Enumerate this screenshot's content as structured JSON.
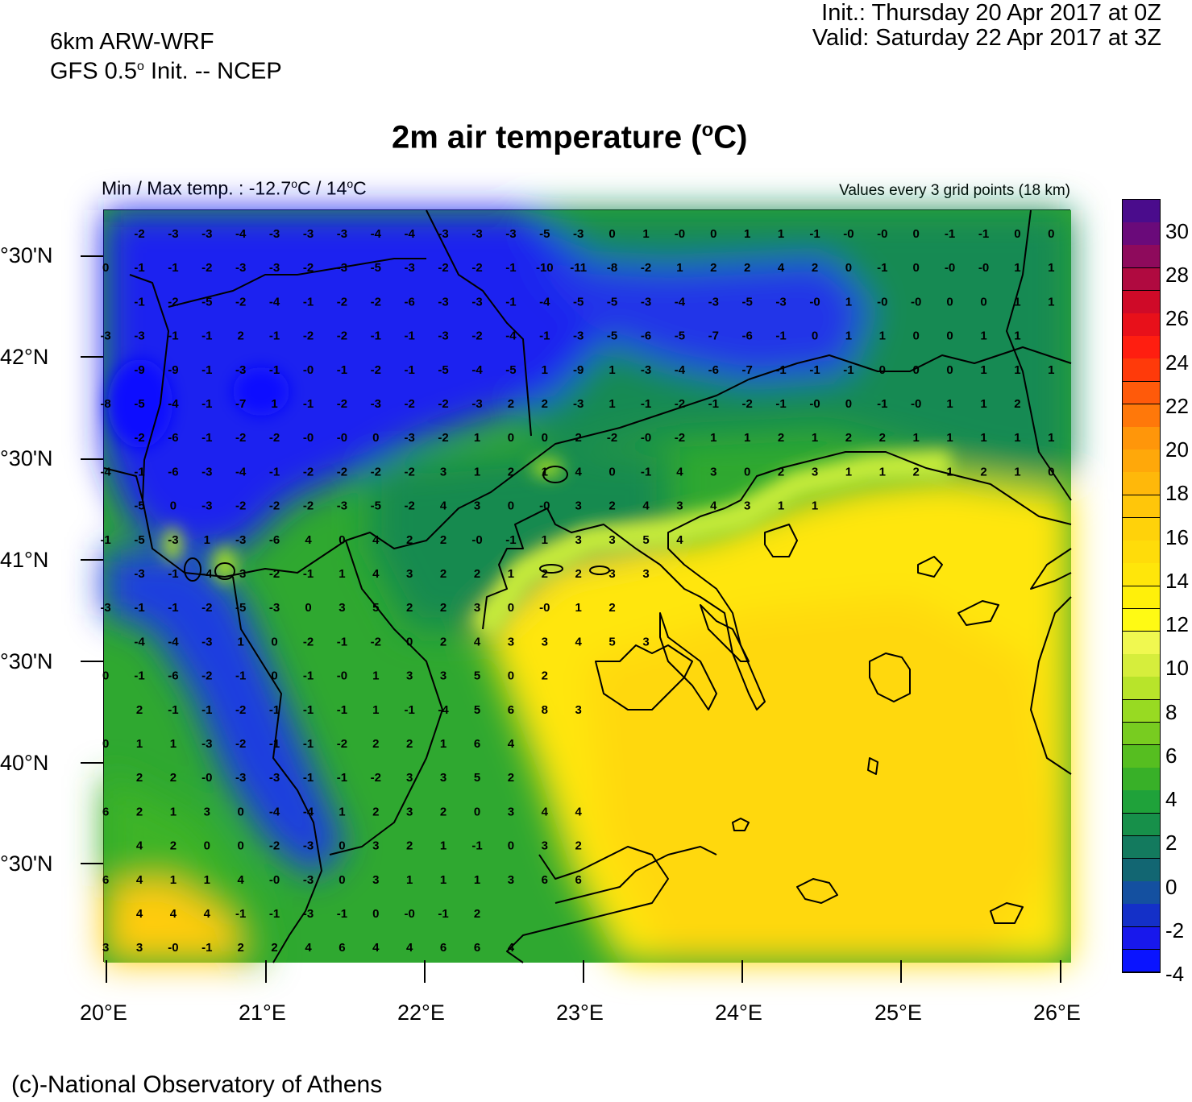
{
  "header": {
    "model_line1": "6km ARW-WRF",
    "model_line2_pre": "GFS 0.5",
    "model_line2_sup": "o",
    "model_line2_post": " Init. -- NCEP",
    "init": "Init.:  Thursday 20 Apr 2017 at 0Z",
    "valid": "Valid: Saturday 22 Apr 2017 at 3Z"
  },
  "title": {
    "main_pre": "2m air temperature (",
    "main_sup": "o",
    "main_post": "C)",
    "minmax_pre": "Min / Max temp. : -12.7",
    "minmax_sup1": "o",
    "minmax_mid": "C / 14",
    "minmax_sup2": "o",
    "minmax_post": "C",
    "grid_note": "Values every 3 grid points (18 km)"
  },
  "axes": {
    "y_labels": [
      "°30'N",
      "42°N",
      "°30'N",
      "41°N",
      "°30'N",
      "40°N",
      "°30'N"
    ],
    "x_labels": [
      "20°E",
      "21°E",
      "22°E",
      "23°E",
      "24°E",
      "25°E",
      "26°E"
    ]
  },
  "colorbar": {
    "labels": [
      "30",
      "28",
      "26",
      "24",
      "22",
      "20",
      "18",
      "16",
      "14",
      "12",
      "10",
      "8",
      "6",
      "4",
      "2",
      "0",
      "-2",
      "-4"
    ],
    "colors": [
      "#4a0c8c",
      "#6a0a7a",
      "#8e0a5c",
      "#b00a40",
      "#cf0a28",
      "#e8101a",
      "#ff1e10",
      "#ff3a0a",
      "#ff5a0a",
      "#ff780a",
      "#ff960a",
      "#ffa80a",
      "#ffb80a",
      "#ffc60a",
      "#ffd20a",
      "#ffdc0a",
      "#ffe60a",
      "#fff00a",
      "#fffa14",
      "#f0f850",
      "#d6ee3c",
      "#b8e42a",
      "#98da22",
      "#78cc20",
      "#56be20",
      "#38b028",
      "#1fa23a",
      "#17904a",
      "#137a5e",
      "#126672",
      "#1450a0",
      "#1430c8",
      "#1818ec",
      "#0a14ff"
    ]
  },
  "grid_values": [
    [
      "-2",
      "-3",
      "-3",
      "-4",
      "-3",
      "-3",
      "-3",
      "-4",
      "-4",
      "-3",
      "-3",
      "-3",
      "-5",
      "-3",
      "0",
      "1",
      "-0",
      "0",
      "1",
      "1",
      "-1",
      "-0",
      "-0",
      "0",
      "-1",
      "-1",
      "0",
      "0"
    ],
    [
      "0",
      "-1",
      "-1",
      "-2",
      "-3",
      "-3",
      "-2",
      "-3",
      "-5",
      "-3",
      "-2",
      "-2",
      "-1",
      "-10",
      "-11",
      "-8",
      "-2",
      "1",
      "2",
      "2",
      "4",
      "2",
      "0",
      "-1",
      "0",
      "-0",
      "-0",
      "1",
      "1"
    ],
    [
      "-1",
      "-2",
      "-5",
      "-2",
      "-4",
      "-1",
      "-2",
      "-2",
      "-6",
      "-3",
      "-3",
      "-1",
      "-4",
      "-5",
      "-5",
      "-3",
      "-4",
      "-3",
      "-5",
      "-3",
      "-0",
      "1",
      "-0",
      "-0",
      "0",
      "0",
      "1",
      "1"
    ],
    [
      "-3",
      "-3",
      "-1",
      "-1",
      "2",
      "-1",
      "-2",
      "-2",
      "-1",
      "-1",
      "-3",
      "-2",
      "-4",
      "-1",
      "-3",
      "-5",
      "-6",
      "-5",
      "-7",
      "-6",
      "-1",
      "0",
      "1",
      "1",
      "0",
      "0",
      "1",
      "1"
    ],
    [
      "-9",
      "-9",
      "-1",
      "-3",
      "-1",
      "-0",
      "-1",
      "-2",
      "-1",
      "-5",
      "-4",
      "-5",
      "1",
      "-9",
      "1",
      "-3",
      "-4",
      "-6",
      "-7",
      "-1",
      "-1",
      "-1",
      "0",
      "0",
      "0",
      "1",
      "1",
      "1"
    ],
    [
      "-8",
      "-5",
      "-4",
      "-1",
      "-7",
      "1",
      "-1",
      "-2",
      "-3",
      "-2",
      "-2",
      "-3",
      "2",
      "2",
      "-3",
      "1",
      "-1",
      "-2",
      "-1",
      "-2",
      "-1",
      "-0",
      "0",
      "-1",
      "-0",
      "1",
      "1",
      "2"
    ],
    [
      "-2",
      "-6",
      "-1",
      "-2",
      "-2",
      "-0",
      "-0",
      "0",
      "-3",
      "-2",
      "1",
      "0",
      "0",
      "2",
      "-2",
      "-0",
      "-2",
      "1",
      "1",
      "2",
      "1",
      "2",
      "2",
      "1",
      "1",
      "1",
      "1",
      "1"
    ],
    [
      "-4",
      "-1",
      "-6",
      "-3",
      "-4",
      "-1",
      "-2",
      "-2",
      "-2",
      "-2",
      "3",
      "1",
      "2",
      "1",
      "4",
      "0",
      "-1",
      "4",
      "3",
      "0",
      "2",
      "3",
      "1",
      "1",
      "2",
      "1",
      "2",
      "1",
      "0"
    ],
    [
      "-5",
      "0",
      "-3",
      "-2",
      "-2",
      "-2",
      "-3",
      "-5",
      "-2",
      "4",
      "3",
      "0",
      "-0",
      "3",
      "2",
      "4",
      "3",
      "4",
      "3",
      "1",
      "1"
    ],
    [
      "-1",
      "-5",
      "-3",
      "1",
      "-3",
      "-6",
      "4",
      "0",
      "4",
      "2",
      "2",
      "-0",
      "-1",
      "1",
      "3",
      "3",
      "5",
      "4"
    ],
    [
      "-3",
      "-1",
      "-4",
      "-3",
      "-2",
      "-1",
      "1",
      "4",
      "3",
      "2",
      "2",
      "1",
      "2",
      "2",
      "3",
      "3"
    ],
    [
      "-3",
      "-1",
      "-1",
      "-2",
      "-5",
      "-3",
      "0",
      "3",
      "5",
      "2",
      "2",
      "3",
      "0",
      "-0",
      "1",
      "2"
    ],
    [
      "-4",
      "-4",
      "-3",
      "1",
      "0",
      "-2",
      "-1",
      "-2",
      "0",
      "2",
      "4",
      "3",
      "3",
      "4",
      "5",
      "3"
    ],
    [
      "0",
      "-1",
      "-6",
      "-2",
      "-1",
      "0",
      "-1",
      "-0",
      "1",
      "3",
      "3",
      "5",
      "0",
      "2"
    ],
    [
      "2",
      "-1",
      "-1",
      "-2",
      "-1",
      "-1",
      "-1",
      "1",
      "-1",
      "-4",
      "5",
      "6",
      "8",
      "3"
    ],
    [
      "0",
      "1",
      "1",
      "-3",
      "-2",
      "-1",
      "-1",
      "-2",
      "2",
      "2",
      "1",
      "6",
      "4"
    ],
    [
      "2",
      "2",
      "-0",
      "-3",
      "-3",
      "-1",
      "-1",
      "-2",
      "3",
      "3",
      "5",
      "2"
    ],
    [
      "6",
      "2",
      "1",
      "3",
      "0",
      "-4",
      "-4",
      "1",
      "2",
      "3",
      "2",
      "0",
      "3",
      "4",
      "4"
    ],
    [
      "4",
      "2",
      "0",
      "0",
      "-2",
      "-3",
      "0",
      "3",
      "2",
      "1",
      "-1",
      "0",
      "3",
      "2"
    ],
    [
      "6",
      "4",
      "1",
      "1",
      "4",
      "-0",
      "-3",
      "0",
      "3",
      "1",
      "1",
      "1",
      "3",
      "6",
      "6"
    ],
    [
      "4",
      "4",
      "4",
      "-1",
      "-1",
      "-3",
      "-1",
      "0",
      "-0",
      "-1",
      "2"
    ],
    [
      "3",
      "3",
      "-0",
      "-1",
      "2",
      "2",
      "4",
      "6",
      "4",
      "4",
      "6",
      "6",
      "4"
    ]
  ],
  "credit": "(c)-National Observatory of Athens"
}
